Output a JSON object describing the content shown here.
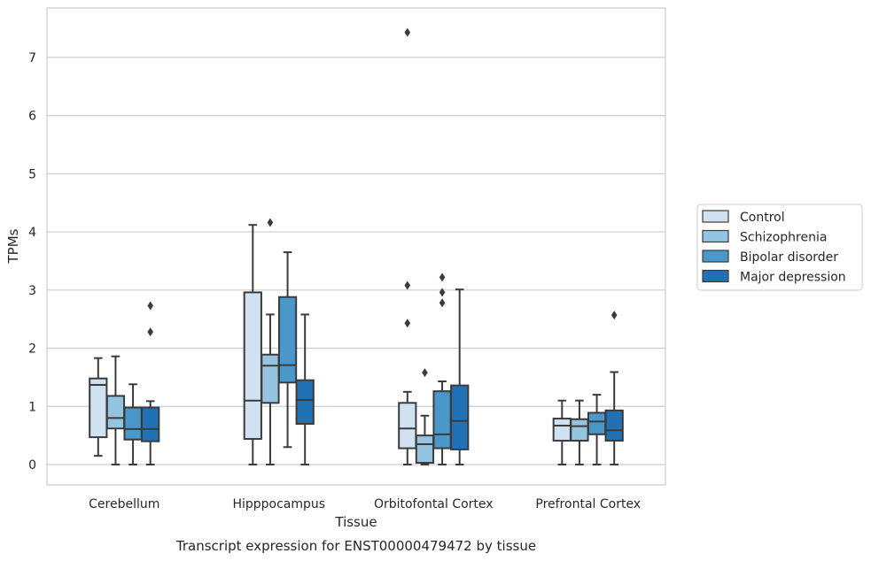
{
  "chart_data": {
    "type": "box",
    "title": "",
    "caption": "Transcript expression for ENST00000479472 by tissue",
    "xlabel": "Tissue",
    "ylabel": "TPMs",
    "ylim": [
      -0.35,
      7.85
    ],
    "yticks": [
      0,
      1,
      2,
      3,
      4,
      5,
      6,
      7
    ],
    "grid": "horizontal",
    "legend_position": "right",
    "categories": [
      "Cerebellum",
      "Hipppocampus",
      "Orbitofontal Cortex",
      "Prefrontal Cortex"
    ],
    "series": [
      {
        "name": "Control",
        "color": "#d0e1f2",
        "boxes": [
          {
            "whislo": 0.15,
            "q1": 0.47,
            "med": 1.37,
            "q3": 1.48,
            "whishi": 1.83,
            "fliers": []
          },
          {
            "whislo": 0.0,
            "q1": 0.44,
            "med": 1.1,
            "q3": 2.96,
            "whishi": 4.12,
            "fliers": []
          },
          {
            "whislo": 0.0,
            "q1": 0.28,
            "med": 0.62,
            "q3": 1.06,
            "whishi": 1.25,
            "fliers": [
              2.43,
              3.08,
              7.43
            ]
          },
          {
            "whislo": 0.0,
            "q1": 0.41,
            "med": 0.67,
            "q3": 0.79,
            "whishi": 1.1,
            "fliers": []
          }
        ]
      },
      {
        "name": "Schizophrenia",
        "color": "#94c4df",
        "boxes": [
          {
            "whislo": 0.0,
            "q1": 0.62,
            "med": 0.8,
            "q3": 1.18,
            "whishi": 1.86,
            "fliers": []
          },
          {
            "whislo": 0.0,
            "q1": 1.06,
            "med": 1.7,
            "q3": 1.89,
            "whishi": 2.58,
            "fliers": [
              4.16
            ]
          },
          {
            "whislo": 0.0,
            "q1": 0.03,
            "med": 0.35,
            "q3": 0.5,
            "whishi": 0.84,
            "fliers": [
              1.58
            ]
          },
          {
            "whislo": 0.0,
            "q1": 0.41,
            "med": 0.66,
            "q3": 0.78,
            "whishi": 1.1,
            "fliers": []
          }
        ]
      },
      {
        "name": "Bipolar disorder",
        "color": "#4a98c9",
        "boxes": [
          {
            "whislo": 0.0,
            "q1": 0.43,
            "med": 0.61,
            "q3": 0.98,
            "whishi": 1.38,
            "fliers": []
          },
          {
            "whislo": 0.3,
            "q1": 1.41,
            "med": 1.71,
            "q3": 2.88,
            "whishi": 3.65,
            "fliers": []
          },
          {
            "whislo": 0.0,
            "q1": 0.28,
            "med": 0.52,
            "q3": 1.26,
            "whishi": 1.43,
            "fliers": [
              2.78,
              2.96,
              3.22
            ]
          },
          {
            "whislo": 0.0,
            "q1": 0.52,
            "med": 0.74,
            "q3": 0.89,
            "whishi": 1.2,
            "fliers": []
          }
        ]
      },
      {
        "name": "Major depression",
        "color": "#2171b5",
        "boxes": [
          {
            "whislo": 0.0,
            "q1": 0.4,
            "med": 0.61,
            "q3": 0.98,
            "whishi": 1.09,
            "fliers": [
              2.28,
              2.73
            ]
          },
          {
            "whislo": 0.0,
            "q1": 0.7,
            "med": 1.11,
            "q3": 1.45,
            "whishi": 2.58,
            "fliers": []
          },
          {
            "whislo": 0.0,
            "q1": 0.26,
            "med": 0.75,
            "q3": 1.36,
            "whishi": 3.01,
            "fliers": []
          },
          {
            "whislo": 0.0,
            "q1": 0.41,
            "med": 0.59,
            "q3": 0.93,
            "whishi": 1.59,
            "fliers": [
              2.57
            ]
          }
        ]
      }
    ]
  }
}
